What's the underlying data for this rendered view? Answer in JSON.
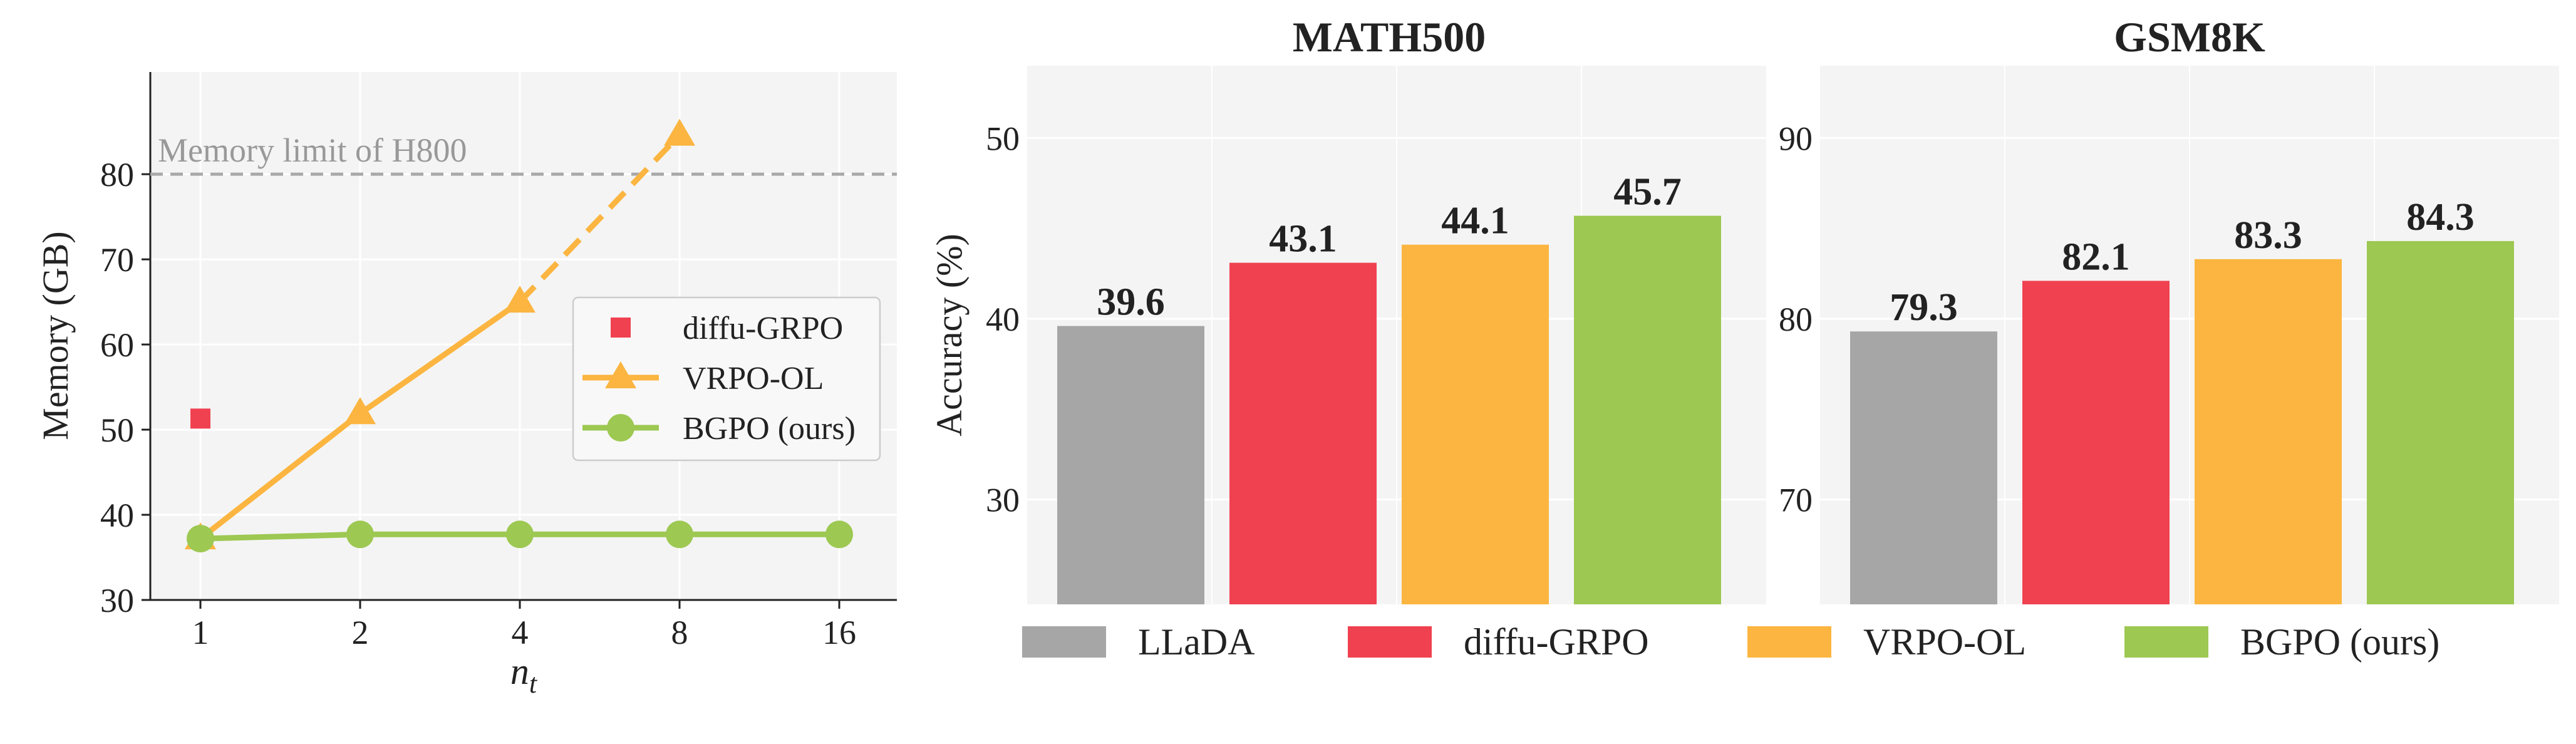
{
  "colors": {
    "llada": "#a6a6a6",
    "diffu": "#f04150",
    "vrpo": "#fbb540",
    "bgpo": "#9dc852",
    "limit_line": "#a9a9a9",
    "panel_bg": "#f4f4f4",
    "grid": "#ffffff"
  },
  "chart_data": [
    {
      "type": "line",
      "title": "",
      "xlabel": "n",
      "xlabel_sub": "t",
      "ylabel": "Memory (GB)",
      "x_ticks": [
        "1",
        "2",
        "4",
        "8",
        "16"
      ],
      "y_ticks": [
        30,
        40,
        50,
        60,
        70,
        80
      ],
      "ylim": [
        30,
        92
      ],
      "grid": true,
      "legend_position": "center-right",
      "annotation": {
        "text": "Memory limit of H800",
        "y": 80,
        "style": "dashed"
      },
      "series": [
        {
          "name": "diffu-GRPO",
          "marker": "square",
          "x": [
            "1"
          ],
          "values": [
            51.3
          ]
        },
        {
          "name": "VRPO-OL",
          "marker": "triangle",
          "x": [
            "1",
            "2",
            "4",
            "8"
          ],
          "values": [
            37.2,
            51.9,
            65.0,
            84.6
          ],
          "dashed_from": "4"
        },
        {
          "name": "BGPO (ours)",
          "marker": "circle",
          "x": [
            "1",
            "2",
            "4",
            "8",
            "16"
          ],
          "values": [
            37.2,
            37.7,
            37.7,
            37.7,
            37.7
          ]
        }
      ]
    },
    {
      "type": "bar",
      "title": "MATH500",
      "ylabel": "Accuracy (%)",
      "y_ticks": [
        30,
        40,
        50
      ],
      "ylim": [
        24.2,
        54
      ],
      "grid": true,
      "categories": [
        "LLaDA",
        "diffu-GRPO",
        "VRPO-OL",
        "BGPO (ours)"
      ],
      "values": [
        39.6,
        43.1,
        44.1,
        45.7
      ],
      "labels": [
        "39.6",
        "43.1",
        "44.1",
        "45.7"
      ]
    },
    {
      "type": "bar",
      "title": "GSM8K",
      "ylabel": "",
      "y_ticks": [
        70,
        80,
        90
      ],
      "ylim": [
        64.2,
        94
      ],
      "grid": true,
      "categories": [
        "LLaDA",
        "diffu-GRPO",
        "VRPO-OL",
        "BGPO (ours)"
      ],
      "values": [
        79.3,
        82.1,
        83.3,
        84.3
      ],
      "labels": [
        "79.3",
        "82.1",
        "83.3",
        "84.3"
      ]
    }
  ],
  "bar_legend": [
    "LLaDA",
    "diffu-GRPO",
    "VRPO-OL",
    "BGPO (ours)"
  ]
}
